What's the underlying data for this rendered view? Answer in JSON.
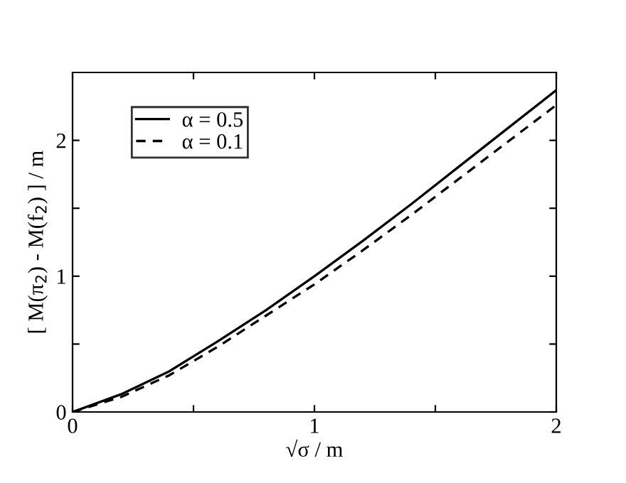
{
  "chart_data": {
    "type": "line",
    "xlabel": "√σ / m",
    "ylabel": "[ M(π$_{2}$) - M(f$_{2}$) ] / m",
    "x": [
      0,
      0.2,
      0.4,
      0.6,
      0.8,
      1.0,
      1.2,
      1.4,
      1.6,
      1.8,
      2.0
    ],
    "series": [
      {
        "name": "α = 0.5",
        "color": "#000000",
        "line_style": "solid",
        "values": [
          0,
          0.13,
          0.3,
          0.52,
          0.75,
          1.0,
          1.26,
          1.53,
          1.81,
          2.09,
          2.37
        ]
      },
      {
        "name": "α = 0.1",
        "color": "#000000",
        "line_style": "dashed",
        "values": [
          0,
          0.11,
          0.27,
          0.48,
          0.71,
          0.94,
          1.19,
          1.45,
          1.72,
          1.99,
          2.26
        ]
      }
    ],
    "xlim": [
      0,
      2
    ],
    "ylim": [
      0,
      2.5
    ],
    "xticks": [
      0,
      {
        "value": 0.5,
        "label": null
      },
      1,
      {
        "value": 1.5,
        "label": null
      },
      2
    ],
    "yticks": [
      0,
      {
        "value": 0.5,
        "label": null
      },
      1,
      {
        "value": 1.5,
        "label": null
      },
      2
    ],
    "grid": false,
    "legend": "top left",
    "marker": "none"
  }
}
